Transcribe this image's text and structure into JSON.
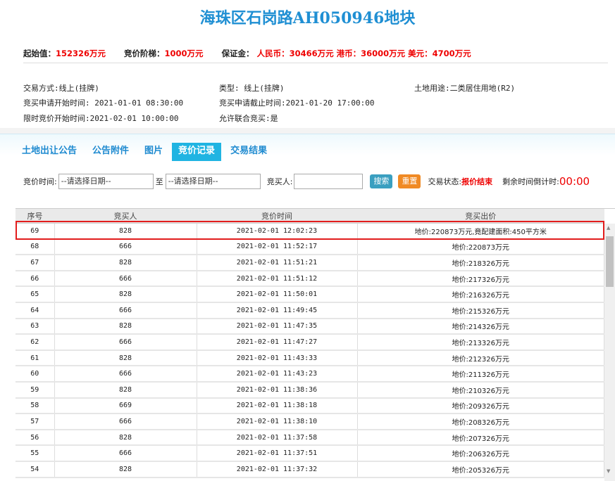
{
  "title": "海珠区石岗路AH050946地块",
  "info": {
    "start_label": "起始值：",
    "start_value": "152326万元",
    "step_label": "竞价阶梯：",
    "step_value": "1000万元",
    "deposit_label": "保证金：",
    "rmb_label": "人民币：",
    "rmb_value": "30466万元",
    "hkd_label": "港币：",
    "hkd_value": "36000万元",
    "usd_label": "美元：",
    "usd_value": "4700万元"
  },
  "details": {
    "trade_mode": "交易方式:线上(挂牌)",
    "type": "类型:  线上(挂牌)",
    "land_use": "土地用途:二类居住用地(R2)",
    "apply_start": "竞买申请开始时间: 2021-01-01 08:30:00",
    "apply_end": "竞买申请截止时间:2021-01-20 17:00:00",
    "bid_start": "限时竞价开始时间:2021-02-01 10:00:00",
    "joint": "允许联合竞买:是"
  },
  "tabs": [
    {
      "label": "土地出让公告"
    },
    {
      "label": "公告附件"
    },
    {
      "label": "图片"
    },
    {
      "label": "竞价记录",
      "active": true
    },
    {
      "label": "交易结果"
    }
  ],
  "search": {
    "time_label": "竞价时间:",
    "date_placeholder": "--请选择日期--",
    "to_label": "至",
    "bidder_label": "竞买人:",
    "bidder_value": "",
    "search_btn": "搜索",
    "reset_btn": "重置",
    "status_label": "交易状态:",
    "status_value": "报价结束",
    "countdown_label": "剩余时间倒计时:",
    "countdown_value": "00:00"
  },
  "colors": {
    "accent": "#20b4e2",
    "search_btn": "#3a9fc0",
    "reset_btn": "#f08a24",
    "highlight": "#e21d1d"
  },
  "table": {
    "headers": [
      "序号",
      "竞买人",
      "竞价时间",
      "竞买出价"
    ],
    "rows": [
      [
        "69",
        "828",
        "2021-02-01 12:02:23",
        "地价:220873万元,竟配建面积:450平方米"
      ],
      [
        "68",
        "666",
        "2021-02-01 11:52:17",
        "地价:220873万元"
      ],
      [
        "67",
        "828",
        "2021-02-01 11:51:21",
        "地价:218326万元"
      ],
      [
        "66",
        "666",
        "2021-02-01 11:51:12",
        "地价:217326万元"
      ],
      [
        "65",
        "828",
        "2021-02-01 11:50:01",
        "地价:216326万元"
      ],
      [
        "64",
        "666",
        "2021-02-01 11:49:45",
        "地价:215326万元"
      ],
      [
        "63",
        "828",
        "2021-02-01 11:47:35",
        "地价:214326万元"
      ],
      [
        "62",
        "666",
        "2021-02-01 11:47:27",
        "地价:213326万元"
      ],
      [
        "61",
        "828",
        "2021-02-01 11:43:33",
        "地价:212326万元"
      ],
      [
        "60",
        "666",
        "2021-02-01 11:43:23",
        "地价:211326万元"
      ],
      [
        "59",
        "828",
        "2021-02-01 11:38:36",
        "地价:210326万元"
      ],
      [
        "58",
        "669",
        "2021-02-01 11:38:18",
        "地价:209326万元"
      ],
      [
        "57",
        "666",
        "2021-02-01 11:38:10",
        "地价:208326万元"
      ],
      [
        "56",
        "828",
        "2021-02-01 11:37:58",
        "地价:207326万元"
      ],
      [
        "55",
        "666",
        "2021-02-01 11:37:51",
        "地价:206326万元"
      ],
      [
        "54",
        "828",
        "2021-02-01 11:37:32",
        "地价:205326万元"
      ]
    ]
  }
}
